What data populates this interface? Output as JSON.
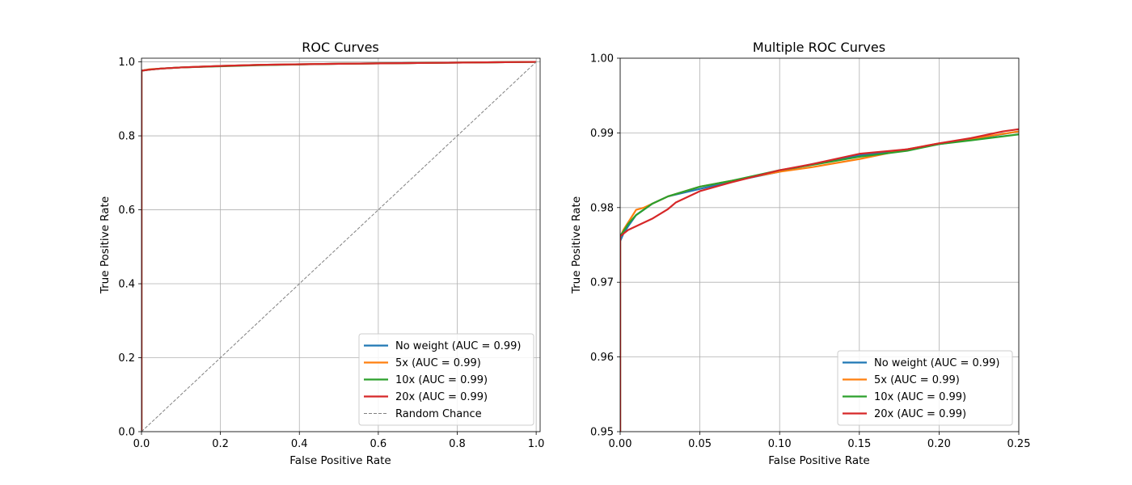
{
  "chart_data": [
    {
      "type": "line",
      "title": "ROC Curves",
      "xlabel": "False Positive Rate",
      "ylabel": "True Positive Rate",
      "xlim": [
        0,
        1.01
      ],
      "ylim": [
        0,
        1.01
      ],
      "xticks": [
        0,
        0.2,
        0.4,
        0.6,
        0.8,
        1.0
      ],
      "xtick_labels": [
        "0.0",
        "0.2",
        "0.4",
        "0.6",
        "0.8",
        "1.0"
      ],
      "yticks": [
        0,
        0.2,
        0.4,
        0.6,
        0.8,
        1.0
      ],
      "ytick_labels": [
        "0.0",
        "0.2",
        "0.4",
        "0.6",
        "0.8",
        "1.0"
      ],
      "grid": true,
      "legend_position": "lower-right",
      "series": [
        {
          "name": "No weight (AUC = 0.99)",
          "color": "#1f77b4",
          "dash": "solid",
          "x": [
            0,
            0,
            0.005,
            0.02,
            0.05,
            0.1,
            0.2,
            0.3,
            0.5,
            0.7,
            0.9,
            1.0
          ],
          "y": [
            0,
            0.976,
            0.977,
            0.979,
            0.982,
            0.985,
            0.989,
            0.992,
            0.995,
            0.997,
            0.999,
            1.0
          ]
        },
        {
          "name": "5x (AUC = 0.99)",
          "color": "#ff7f0e",
          "dash": "solid",
          "x": [
            0,
            0,
            0.005,
            0.02,
            0.05,
            0.1,
            0.2,
            0.3,
            0.5,
            0.7,
            0.9,
            1.0
          ],
          "y": [
            0,
            0.976,
            0.977,
            0.98,
            0.982,
            0.985,
            0.989,
            0.992,
            0.995,
            0.997,
            0.999,
            1.0
          ]
        },
        {
          "name": "10x (AUC = 0.99)",
          "color": "#2ca02c",
          "dash": "solid",
          "x": [
            0,
            0,
            0.005,
            0.02,
            0.05,
            0.1,
            0.2,
            0.3,
            0.5,
            0.7,
            0.9,
            1.0
          ],
          "y": [
            0,
            0.976,
            0.977,
            0.979,
            0.982,
            0.985,
            0.988,
            0.991,
            0.995,
            0.997,
            0.999,
            1.0
          ]
        },
        {
          "name": "20x (AUC = 0.99)",
          "color": "#d62728",
          "dash": "solid",
          "x": [
            0,
            0,
            0.005,
            0.02,
            0.05,
            0.1,
            0.2,
            0.3,
            0.5,
            0.7,
            0.9,
            1.0
          ],
          "y": [
            0,
            0.976,
            0.977,
            0.979,
            0.982,
            0.985,
            0.989,
            0.992,
            0.995,
            0.997,
            0.999,
            1.0
          ]
        },
        {
          "name": "Random Chance",
          "color": "#808080",
          "dash": "dashed",
          "x": [
            0,
            1
          ],
          "y": [
            0,
            1
          ]
        }
      ]
    },
    {
      "type": "line",
      "title": "Multiple ROC Curves",
      "xlabel": "False Positive Rate",
      "ylabel": "True Positive Rate",
      "xlim": [
        0,
        0.25
      ],
      "ylim": [
        0.95,
        1.0
      ],
      "xticks": [
        0,
        0.05,
        0.1,
        0.15,
        0.2,
        0.25
      ],
      "xtick_labels": [
        "0.00",
        "0.05",
        "0.10",
        "0.15",
        "0.20",
        "0.25"
      ],
      "yticks": [
        0.95,
        0.96,
        0.97,
        0.98,
        0.99,
        1.0
      ],
      "ytick_labels": [
        "0.95",
        "0.96",
        "0.97",
        "0.98",
        "0.99",
        "1.00"
      ],
      "grid": true,
      "legend_position": "lower-right",
      "series": [
        {
          "name": "No weight (AUC = 0.99)",
          "color": "#1f77b4",
          "dash": "solid",
          "x": [
            0,
            0,
            0.001,
            0.002,
            0.005,
            0.01,
            0.02,
            0.03,
            0.05,
            0.07,
            0.1,
            0.12,
            0.15,
            0.18,
            0.2,
            0.22,
            0.25
          ],
          "y": [
            0.95,
            0.9755,
            0.976,
            0.9765,
            0.9775,
            0.979,
            0.9805,
            0.9815,
            0.9825,
            0.9835,
            0.9848,
            0.9858,
            0.987,
            0.9878,
            0.9885,
            0.9891,
            0.9902
          ]
        },
        {
          "name": "5x (AUC = 0.99)",
          "color": "#ff7f0e",
          "dash": "solid",
          "x": [
            0,
            0,
            0.001,
            0.002,
            0.005,
            0.01,
            0.015,
            0.02,
            0.03,
            0.05,
            0.07,
            0.1,
            0.12,
            0.15,
            0.18,
            0.2,
            0.22,
            0.25
          ],
          "y": [
            0.95,
            0.9762,
            0.9765,
            0.977,
            0.978,
            0.9797,
            0.98,
            0.9805,
            0.9815,
            0.9828,
            0.9836,
            0.9848,
            0.9854,
            0.9865,
            0.9878,
            0.9886,
            0.9892,
            0.9902
          ]
        },
        {
          "name": "10x (AUC = 0.99)",
          "color": "#2ca02c",
          "dash": "solid",
          "x": [
            0,
            0,
            0.001,
            0.002,
            0.005,
            0.01,
            0.02,
            0.03,
            0.05,
            0.07,
            0.1,
            0.12,
            0.15,
            0.18,
            0.2,
            0.22,
            0.25
          ],
          "y": [
            0.95,
            0.9762,
            0.9765,
            0.9768,
            0.9778,
            0.979,
            0.9805,
            0.9815,
            0.9828,
            0.9836,
            0.985,
            0.9857,
            0.9868,
            0.9876,
            0.9885,
            0.989,
            0.9898
          ]
        },
        {
          "name": "20x (AUC = 0.99)",
          "color": "#d62728",
          "dash": "solid",
          "x": [
            0,
            0,
            0.001,
            0.002,
            0.005,
            0.01,
            0.02,
            0.03,
            0.035,
            0.05,
            0.07,
            0.1,
            0.12,
            0.15,
            0.18,
            0.2,
            0.22,
            0.24,
            0.25
          ],
          "y": [
            0.95,
            0.9762,
            0.9763,
            0.9765,
            0.977,
            0.9775,
            0.9785,
            0.9798,
            0.9807,
            0.9822,
            0.9834,
            0.985,
            0.9858,
            0.9872,
            0.9878,
            0.9886,
            0.9893,
            0.9902,
            0.9905
          ]
        }
      ]
    }
  ]
}
